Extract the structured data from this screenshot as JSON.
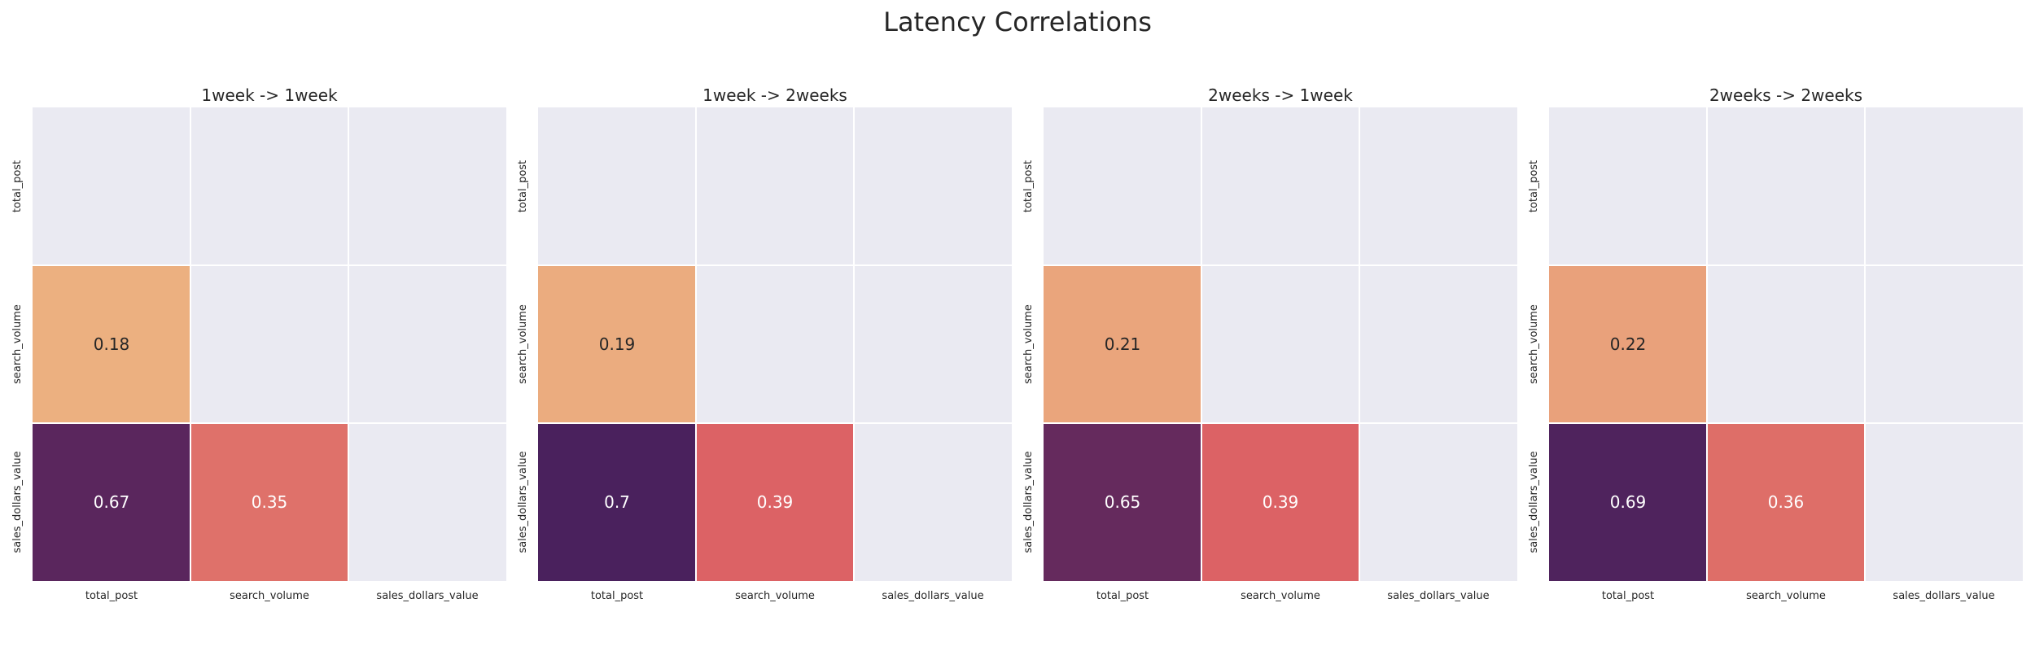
{
  "figure": {
    "title": "Latency Correlations"
  },
  "chart_data": [
    {
      "type": "heatmap",
      "title": "1week -> 1week",
      "x_labels": [
        "total_post",
        "search_volume",
        "sales_dollars_value"
      ],
      "y_labels": [
        "total_post",
        "search_volume",
        "sales_dollars_value"
      ],
      "values": [
        [
          null,
          null,
          null
        ],
        [
          0.18,
          null,
          null
        ],
        [
          0.67,
          0.35,
          null
        ]
      ],
      "mask": "upper triangle incl. diagonal",
      "colormap": "flare",
      "colorbar": false
    },
    {
      "type": "heatmap",
      "title": "1week -> 2weeks",
      "x_labels": [
        "total_post",
        "search_volume",
        "sales_dollars_value"
      ],
      "y_labels": [
        "total_post",
        "search_volume",
        "sales_dollars_value"
      ],
      "values": [
        [
          null,
          null,
          null
        ],
        [
          0.19,
          null,
          null
        ],
        [
          0.7,
          0.39,
          null
        ]
      ],
      "mask": "upper triangle incl. diagonal",
      "colormap": "flare",
      "colorbar": false
    },
    {
      "type": "heatmap",
      "title": "2weeks -> 1week",
      "x_labels": [
        "total_post",
        "search_volume",
        "sales_dollars_value"
      ],
      "y_labels": [
        "total_post",
        "search_volume",
        "sales_dollars_value"
      ],
      "values": [
        [
          null,
          null,
          null
        ],
        [
          0.21,
          null,
          null
        ],
        [
          0.65,
          0.39,
          null
        ]
      ],
      "mask": "upper triangle incl. diagonal",
      "colormap": "flare",
      "colorbar": false
    },
    {
      "type": "heatmap",
      "title": "2weeks -> 2weeks",
      "x_labels": [
        "total_post",
        "search_volume",
        "sales_dollars_value"
      ],
      "y_labels": [
        "total_post",
        "search_volume",
        "sales_dollars_value"
      ],
      "values": [
        [
          null,
          null,
          null
        ],
        [
          0.22,
          null,
          null
        ],
        [
          0.69,
          0.36,
          null
        ]
      ],
      "mask": "upper triangle incl. diagonal",
      "colormap": "flare",
      "colorbar": false
    }
  ],
  "colors": {
    "masked_background": "#eaeaf2",
    "grid_line": "#ffffff",
    "low": "#ecb080",
    "mid": "#d8505e",
    "high": "#4a215d",
    "text_dark": "#262626",
    "text_light": "#ffffff"
  }
}
